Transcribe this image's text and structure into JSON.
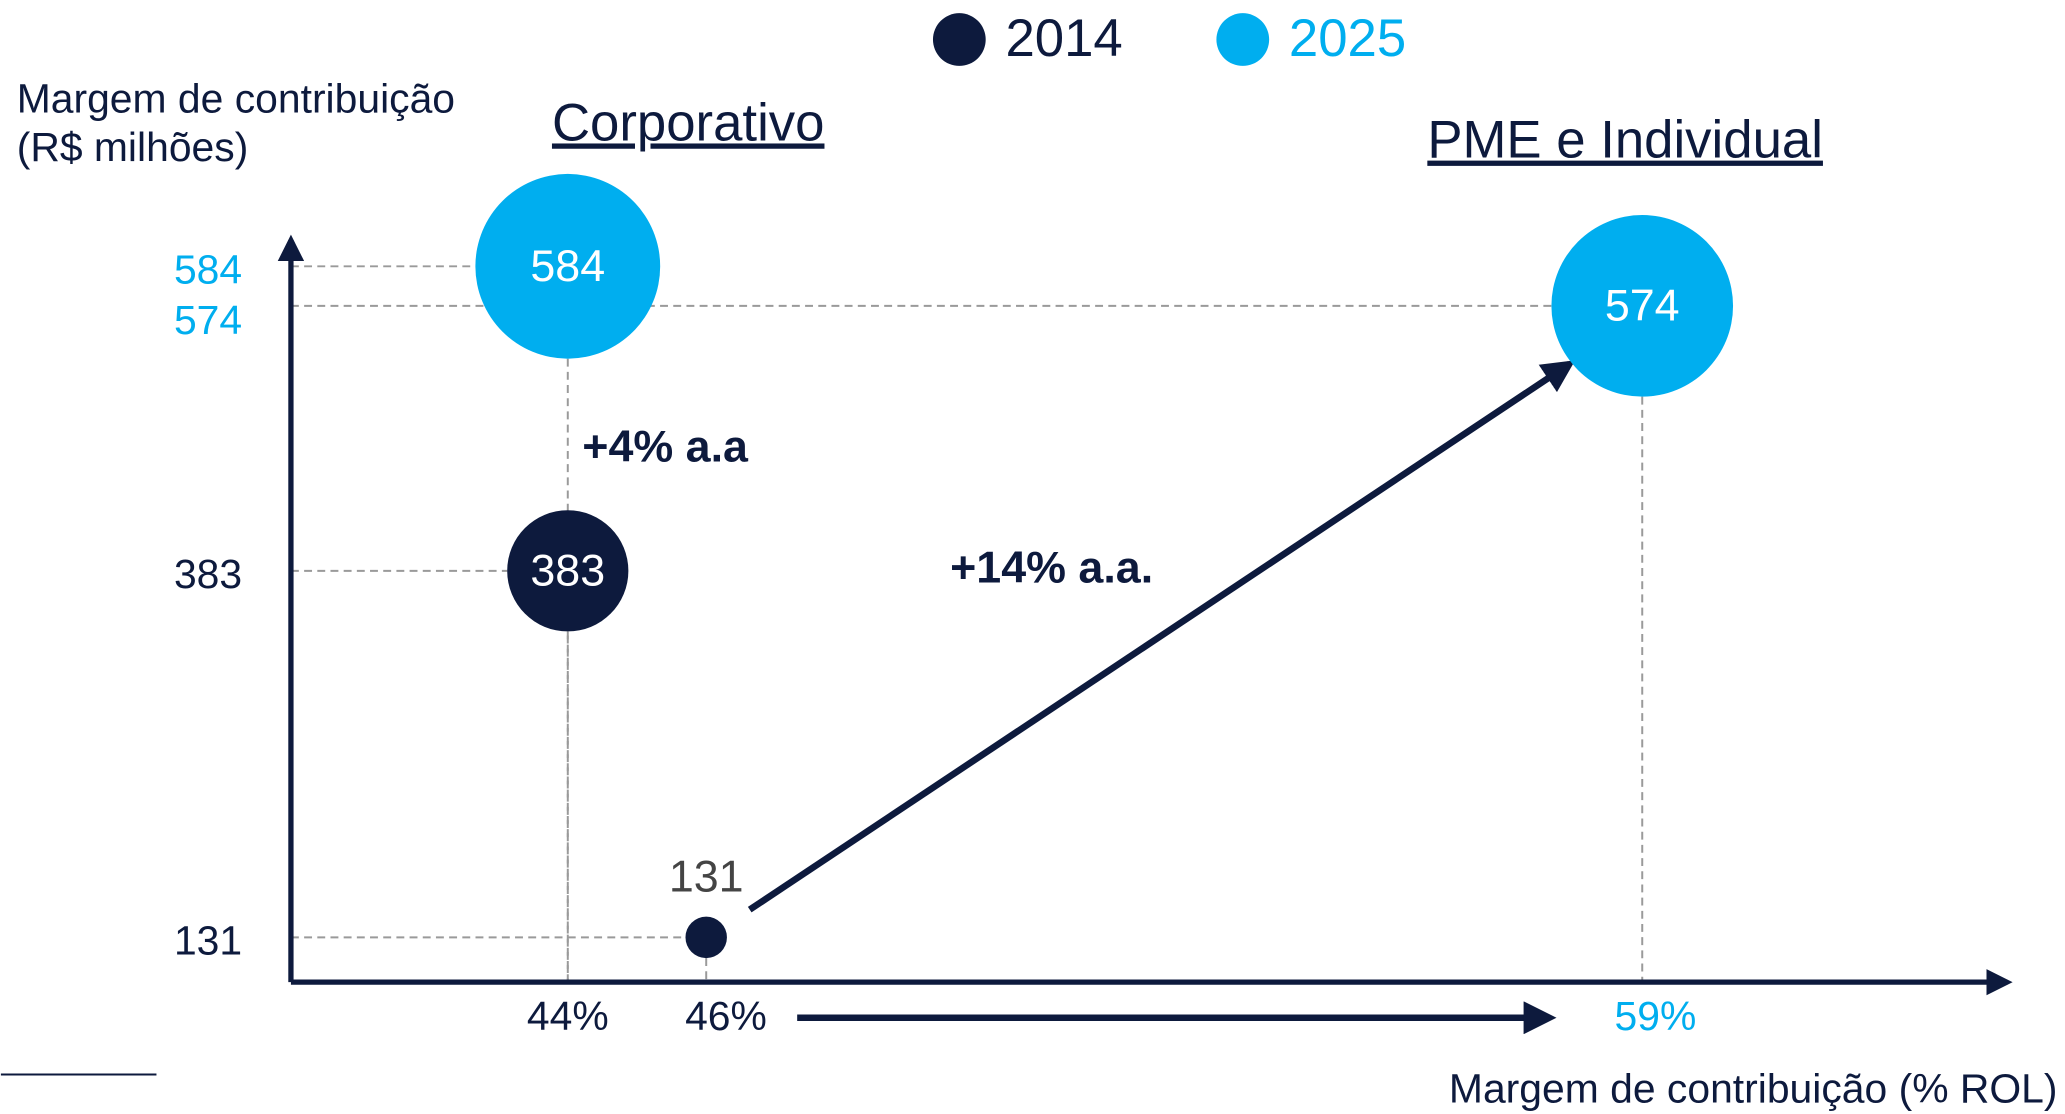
{
  "chart_data": {
    "type": "bubble",
    "ylabel": [
      "Margem de contribuição",
      "(R$ milhões)"
    ],
    "xlabel": "Margem de contribuição (% ROL)",
    "series": [
      {
        "name": "2014",
        "color": "#0d1a3d",
        "x": [
          44,
          46
        ],
        "values": [
          383,
          131
        ]
      },
      {
        "name": "2025",
        "color": "#00aeef",
        "x": [
          44,
          59
        ],
        "values": [
          584,
          574
        ]
      }
    ],
    "yticks": [
      584,
      574,
      383,
      131
    ],
    "xticks": [
      {
        "value": 44,
        "label": "44%"
      },
      {
        "value": 46,
        "label": "46%"
      },
      {
        "value": 59,
        "label": "59%"
      }
    ],
    "groups": [
      "Corporativo",
      "PME e Individual"
    ],
    "annotations": [
      "+4% a.a",
      "+14% a.a."
    ],
    "legend": "top"
  }
}
